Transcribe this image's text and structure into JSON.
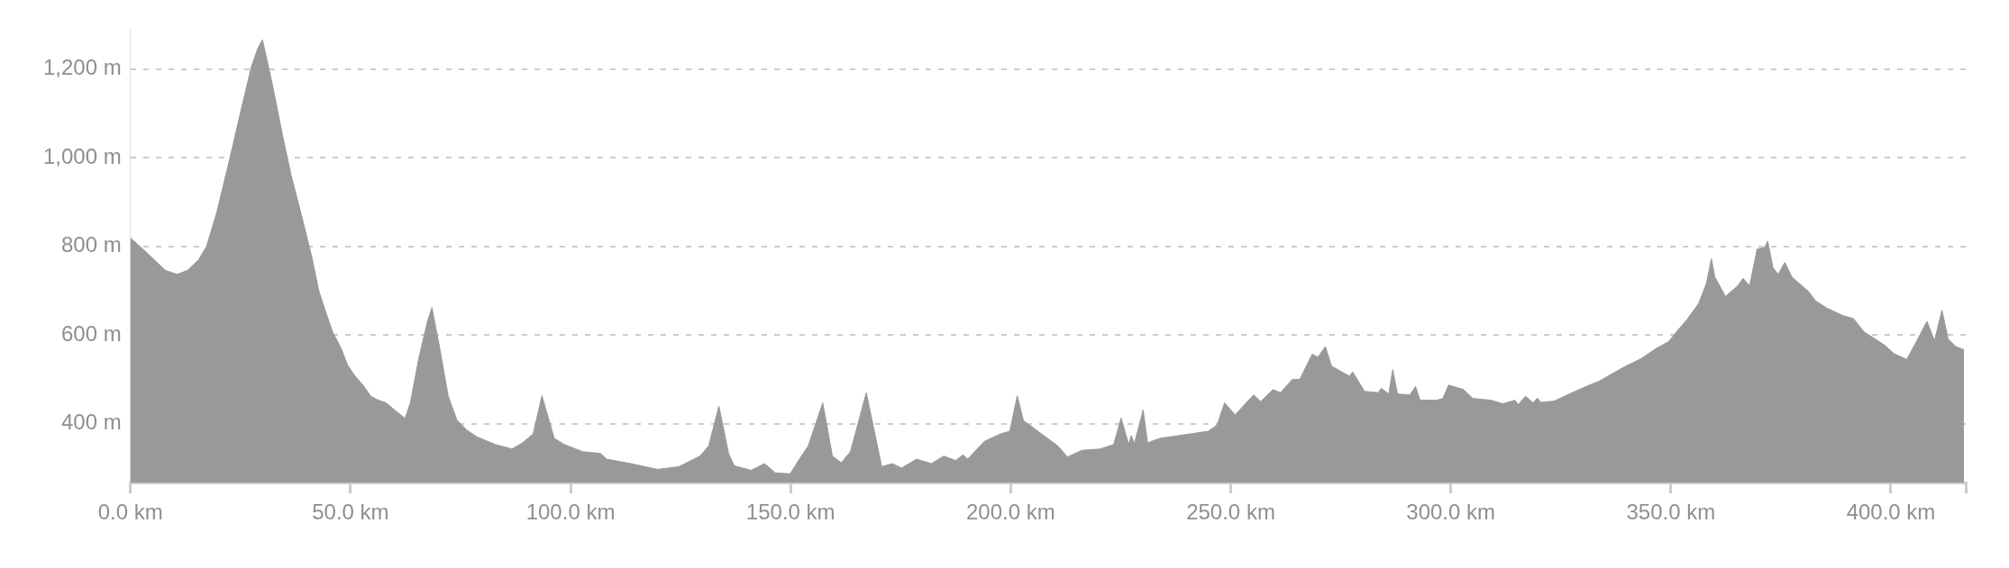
{
  "chart_data": {
    "type": "area",
    "x": [
      0,
      3.9,
      7.9,
      10.6,
      13.0,
      15.5,
      17.3,
      19.6,
      22.4,
      25.1,
      27.5,
      29.0,
      30.0,
      32.2,
      34.5,
      36.5,
      39.3,
      41.2,
      42.8,
      44.3,
      45.9,
      47.9,
      49.4,
      51.0,
      53.0,
      54.6,
      56.1,
      58.1,
      60.4,
      62.4,
      63.6,
      65.5,
      67.5,
      68.5,
      70.3,
      72.2,
      74.2,
      76.5,
      78.8,
      82.9,
      86.7,
      89.1,
      91.5,
      93.5,
      96.3,
      98.6,
      102.7,
      106.8,
      108.2,
      113.7,
      119.8,
      124.6,
      129.4,
      131.4,
      133.7,
      135.9,
      137.2,
      141.0,
      144.1,
      146.5,
      149.9,
      152.0,
      154.0,
      157.3,
      159.5,
      161.5,
      163.6,
      167.2,
      170.7,
      173.1,
      175.2,
      178.6,
      182.0,
      184.8,
      187.5,
      189.2,
      190.2,
      194.0,
      197.7,
      199.8,
      201.5,
      202.9,
      206.6,
      210.7,
      212.9,
      216.2,
      220.3,
      223.4,
      225.1,
      226.8,
      227.4,
      228.1,
      230.1,
      231.1,
      233.9,
      240.8,
      244.9,
      246.9,
      248.6,
      251.0,
      253.8,
      255.2,
      256.8,
      259.6,
      261.3,
      264.0,
      265.7,
      268.5,
      269.8,
      271.5,
      272.9,
      277.0,
      277.7,
      280.4,
      283.5,
      284.2,
      285.9,
      286.8,
      287.9,
      290.7,
      292.0,
      293.0,
      296.8,
      298.2,
      299.5,
      302.9,
      305.0,
      309.1,
      311.8,
      314.6,
      315.3,
      317.0,
      318.7,
      319.7,
      320.4,
      323.5,
      326.9,
      331.0,
      333.7,
      339.2,
      343.3,
      346.7,
      349.5,
      351.5,
      353.6,
      356.3,
      358.1,
      359.2,
      360.0,
      362.4,
      365.2,
      366.4,
      367.9,
      369.6,
      371.3,
      372.0,
      373.2,
      374.4,
      375.9,
      377.5,
      381.2,
      382.9,
      385.6,
      389.1,
      391.5,
      393.9,
      398.6,
      400.7,
      403.6,
      406.1,
      408.2,
      409.9,
      411.6,
      413.0,
      414.7,
      416.6
    ],
    "values": [
      819,
      784,
      746,
      737,
      746,
      770,
      800,
      876,
      991,
      1106,
      1206,
      1248,
      1266,
      1168,
      1053,
      961,
      853,
      777,
      700,
      654,
      608,
      569,
      531,
      508,
      485,
      462,
      454,
      447,
      428,
      412,
      447,
      547,
      631,
      662,
      569,
      462,
      408,
      385,
      370,
      353,
      343,
      357,
      377,
      463,
      367,
      353,
      337,
      333,
      320,
      310,
      297,
      303,
      327,
      350,
      440,
      333,
      305,
      295,
      310,
      289,
      287,
      320,
      350,
      447,
      327,
      312,
      337,
      470,
      303,
      310,
      300,
      320,
      310,
      327,
      317,
      330,
      320,
      360,
      377,
      383,
      463,
      407,
      380,
      350,
      325,
      340,
      343,
      353,
      413,
      353,
      373,
      355,
      431,
      357,
      367,
      377,
      383,
      397,
      447,
      420,
      450,
      465,
      450,
      477,
      470,
      500,
      500,
      557,
      550,
      574,
      530,
      507,
      517,
      473,
      470,
      480,
      467,
      522,
      467,
      465,
      484,
      453,
      453,
      457,
      487,
      477,
      457,
      453,
      445,
      453,
      443,
      462,
      447,
      458,
      448,
      451,
      467,
      485,
      496,
      527,
      547,
      570,
      585,
      610,
      634,
      671,
      717,
      772,
      731,
      687,
      711,
      728,
      711,
      794,
      797,
      812,
      752,
      737,
      764,
      731,
      699,
      677,
      660,
      644,
      637,
      607,
      577,
      558,
      545,
      591,
      631,
      587,
      656,
      591,
      574,
      567
    ],
    "color": "#999999",
    "xlim": [
      0,
      417
    ],
    "xticks": [
      {
        "value": 0,
        "label": "0.0 km"
      },
      {
        "value": 50,
        "label": "50.0 km"
      },
      {
        "value": 100,
        "label": "100.0 km"
      },
      {
        "value": 150,
        "label": "150.0 km"
      },
      {
        "value": 200,
        "label": "200.0 km"
      },
      {
        "value": 250,
        "label": "250.0 km"
      },
      {
        "value": 300,
        "label": "300.0 km"
      },
      {
        "value": 350,
        "label": "350.0 km"
      },
      {
        "value": 400,
        "label": "400.0 km"
      },
      {
        "value": 417,
        "label": null
      }
    ],
    "ylim": [
      267,
      1290
    ],
    "yticks": [
      {
        "value": 400,
        "label": "400 m"
      },
      {
        "value": 600,
        "label": "600 m"
      },
      {
        "value": 800,
        "label": "800 m"
      },
      {
        "value": 1000,
        "label": "1,000 m"
      },
      {
        "value": 1200,
        "label": "1,200 m"
      }
    ],
    "grid": "y"
  }
}
